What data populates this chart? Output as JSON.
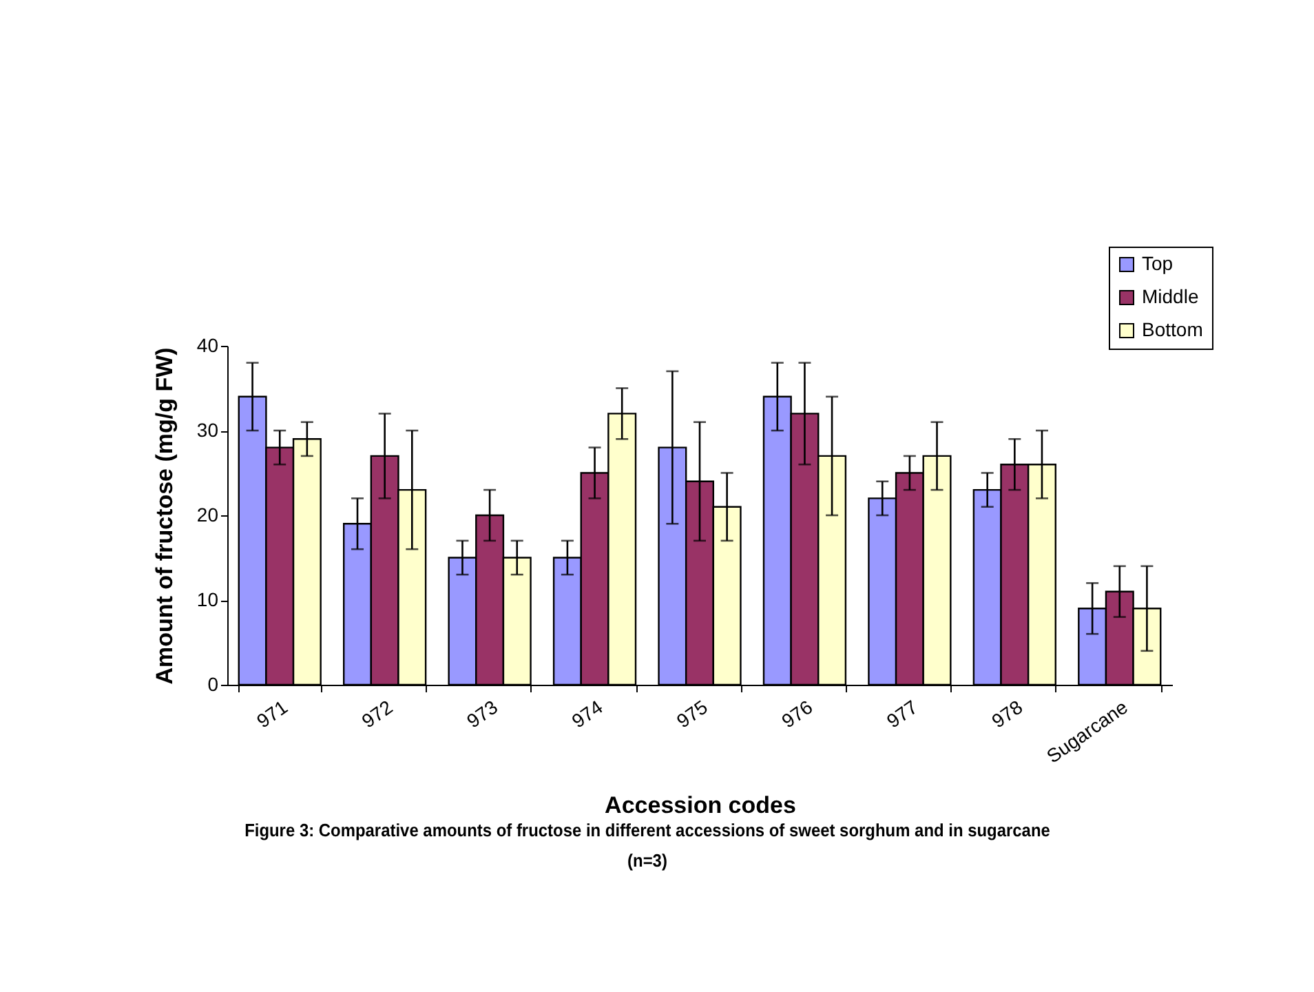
{
  "chart_data": {
    "type": "bar",
    "xlabel": "Accession codes",
    "ylabel": "Amount of fructose (mg/g FW)",
    "categories": [
      "971",
      "972",
      "973",
      "974",
      "975",
      "976",
      "977",
      "978",
      "Sugarcane"
    ],
    "series": [
      {
        "name": "Top",
        "color": "#9999ff",
        "values": [
          34,
          19,
          15,
          15,
          28,
          34,
          22,
          23,
          9
        ],
        "errors": [
          4,
          3,
          2,
          2,
          9,
          4,
          2,
          2,
          3
        ]
      },
      {
        "name": "Middle",
        "color": "#993366",
        "values": [
          28,
          27,
          20,
          25,
          24,
          32,
          25,
          26,
          11
        ],
        "errors": [
          2,
          5,
          3,
          3,
          7,
          6,
          2,
          3,
          3
        ]
      },
      {
        "name": "Bottom",
        "color": "#ffffcc",
        "values": [
          29,
          23,
          15,
          32,
          21,
          27,
          27,
          26,
          9
        ],
        "errors": [
          2,
          7,
          2,
          3,
          4,
          7,
          4,
          4,
          5
        ]
      }
    ],
    "ylim": [
      0,
      40
    ],
    "yticks": [
      0,
      10,
      20,
      30,
      40
    ],
    "grid": false,
    "legend": "top right",
    "annotations": [
      "Figure 3:  Comparative amounts of fructose in different accessions of sweet sorghum and in sugarcane (n=3)"
    ]
  }
}
